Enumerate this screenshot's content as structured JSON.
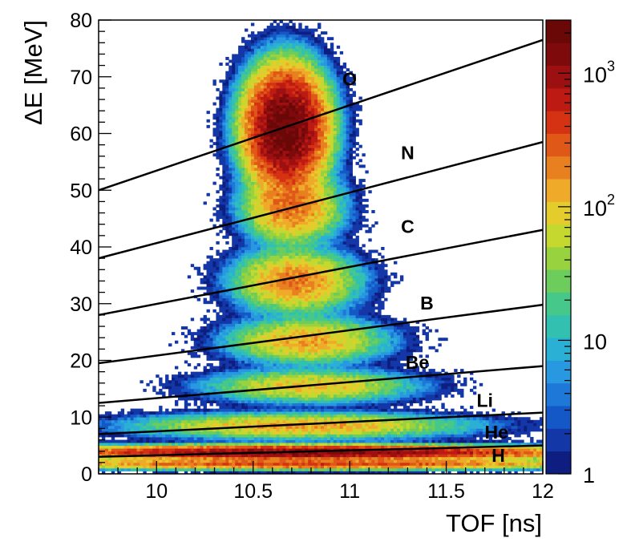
{
  "chart_data": {
    "type": "heatmap",
    "title": "",
    "xlabel": "TOF [ns]",
    "ylabel": "ΔE [MeV]",
    "xlim": [
      9.7,
      12.0
    ],
    "ylim": [
      0,
      80
    ],
    "x_ticks": [
      "10",
      "10.5",
      "11",
      "11.5",
      "12"
    ],
    "y_ticks": [
      "0",
      "10",
      "20",
      "30",
      "40",
      "50",
      "60",
      "70",
      "80"
    ],
    "colorbar": {
      "scale": "log",
      "range": [
        1,
        2500
      ],
      "ticks": [
        "1",
        "10",
        "10",
        "10"
      ],
      "tick_exponents": [
        "",
        "",
        "2",
        "3"
      ],
      "colors": [
        "#0d1e80",
        "#1437a8",
        "#1458c8",
        "#1e78d8",
        "#2898e0",
        "#2ab0d4",
        "#32c0b0",
        "#46c88a",
        "#6ccc5c",
        "#98d23e",
        "#c4d830",
        "#e4cc2c",
        "#eeaa28",
        "#e88020",
        "#e05818",
        "#d43212",
        "#bc1a12",
        "#9c1012",
        "#7e0a0c",
        "#6a0808"
      ]
    },
    "clusters": [
      {
        "name": "H",
        "tof_center": 10.8,
        "dE_center": 1.8,
        "tof_sigma": 0.7,
        "dE_sigma": 0.45,
        "peak": 400
      },
      {
        "name": "He",
        "tof_center": 10.8,
        "dE_center": 3.8,
        "tof_sigma": 0.6,
        "dE_sigma": 0.55,
        "peak": 1500
      },
      {
        "name": "Li",
        "tof_center": 10.75,
        "dE_center": 8.5,
        "tof_sigma": 0.38,
        "dE_sigma": 1.0,
        "peak": 150
      },
      {
        "name": "Be",
        "tof_center": 10.8,
        "dE_center": 15.5,
        "tof_sigma": 0.24,
        "dE_sigma": 1.3,
        "peak": 110
      },
      {
        "name": "B",
        "tof_center": 10.78,
        "dE_center": 23.5,
        "tof_sigma": 0.18,
        "dE_sigma": 1.8,
        "peak": 150
      },
      {
        "name": "C",
        "tof_center": 10.72,
        "dE_center": 34.0,
        "tof_sigma": 0.14,
        "dE_sigma": 2.4,
        "peak": 220
      },
      {
        "name": "N",
        "tof_center": 10.7,
        "dE_center": 47.0,
        "tof_sigma": 0.11,
        "dE_sigma": 2.8,
        "peak": 250
      },
      {
        "name": "O",
        "tof_center": 10.67,
        "dE_center": 61.0,
        "tof_sigma": 0.09,
        "dE_sigma": 4.5,
        "peak": 2300
      }
    ],
    "cut_lines": [
      {
        "name": "O-N",
        "x": [
          9.7,
          12.0
        ],
        "y": [
          50.0,
          76.5
        ]
      },
      {
        "name": "N-C",
        "x": [
          9.7,
          12.0
        ],
        "y": [
          38.0,
          58.5
        ]
      },
      {
        "name": "C-B",
        "x": [
          9.7,
          12.0
        ],
        "y": [
          28.0,
          43.0
        ]
      },
      {
        "name": "B-Be",
        "x": [
          9.7,
          12.0
        ],
        "y": [
          19.5,
          29.8
        ]
      },
      {
        "name": "Be-Li",
        "x": [
          9.7,
          12.0
        ],
        "y": [
          12.5,
          19.0
        ]
      },
      {
        "name": "Li-He",
        "x": [
          9.7,
          12.0
        ],
        "y": [
          7.0,
          10.8
        ]
      },
      {
        "name": "He-H",
        "x": [
          9.7,
          12.0
        ],
        "y": [
          3.0,
          5.0
        ]
      }
    ],
    "band_labels": [
      {
        "text": "O",
        "tof": 11.0,
        "dE": 68.5
      },
      {
        "text": "N",
        "tof": 11.3,
        "dE": 55.5
      },
      {
        "text": "C",
        "tof": 11.3,
        "dE": 42.5
      },
      {
        "text": "B",
        "tof": 11.4,
        "dE": 29.0
      },
      {
        "text": "Be",
        "tof": 11.35,
        "dE": 18.5
      },
      {
        "text": "Li",
        "tof": 11.7,
        "dE": 11.8
      },
      {
        "text": "He",
        "tof": 11.76,
        "dE": 6.2
      },
      {
        "text": "H",
        "tof": 11.77,
        "dE": 2.1
      }
    ]
  }
}
